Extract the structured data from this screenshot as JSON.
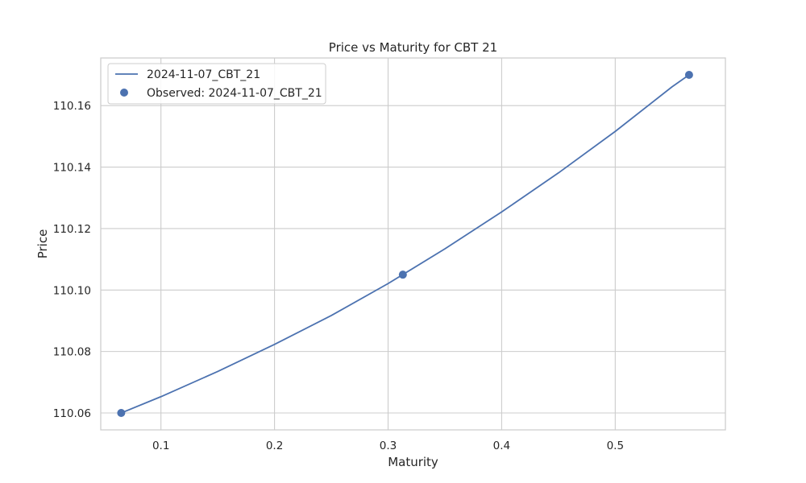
{
  "chart_data": {
    "type": "line",
    "title": "Price vs Maturity for CBT 21",
    "xlabel": "Maturity",
    "ylabel": "Price",
    "xlim": [
      0.047,
      0.597
    ],
    "ylim": [
      110.0545,
      110.1755
    ],
    "x_ticks": [
      0.1,
      0.2,
      0.3,
      0.4,
      0.5
    ],
    "x_tick_labels": [
      "0.1",
      "0.2",
      "0.3",
      "0.4",
      "0.5"
    ],
    "y_ticks": [
      110.06,
      110.08,
      110.1,
      110.12,
      110.14,
      110.16
    ],
    "y_tick_labels": [
      "110.06",
      "110.08",
      "110.10",
      "110.12",
      "110.14",
      "110.16"
    ],
    "grid": true,
    "legend_position": "top-left",
    "series": [
      {
        "name": "2024-11-07_CBT_21",
        "kind": "line",
        "color": "#4c72b0",
        "x": [
          0.065,
          0.1,
          0.15,
          0.2,
          0.25,
          0.3,
          0.35,
          0.4,
          0.45,
          0.5,
          0.55,
          0.565
        ],
        "y": [
          110.06,
          110.0653,
          110.0735,
          110.0823,
          110.0917,
          110.1021,
          110.1134,
          110.1254,
          110.1381,
          110.1516,
          110.1661,
          110.17
        ]
      },
      {
        "name": "Observed: 2024-11-07_CBT_21",
        "kind": "scatter",
        "color": "#4c72b0",
        "x": [
          0.065,
          0.313,
          0.565
        ],
        "y": [
          110.06,
          110.105,
          110.17
        ]
      }
    ]
  }
}
